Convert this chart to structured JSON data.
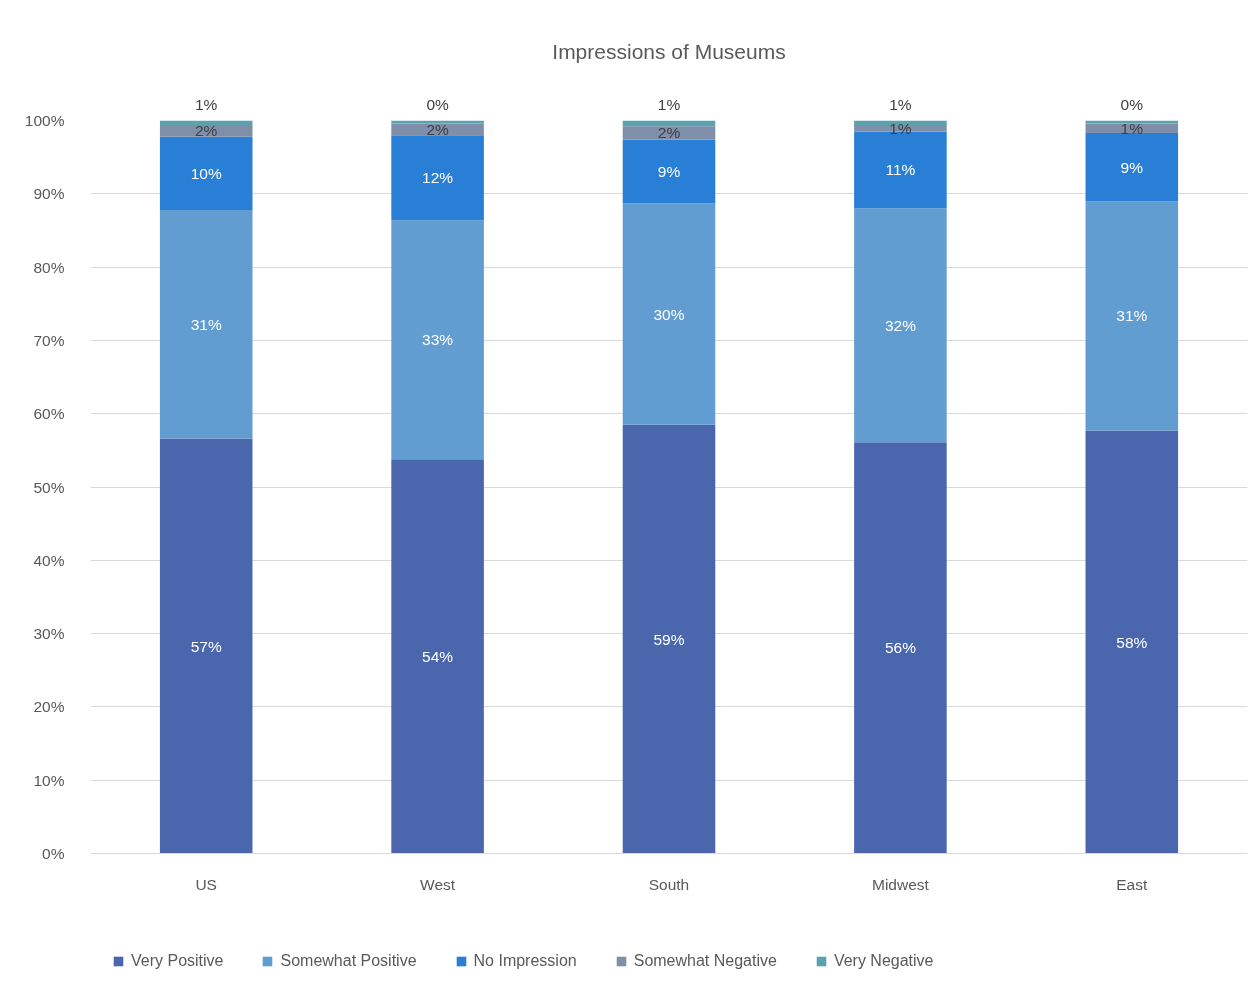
{
  "chart_data": {
    "type": "bar",
    "title": "Impressions of Museums",
    "categories": [
      "US",
      "West",
      "South",
      "Midwest",
      "East"
    ],
    "stacked": true,
    "ylim": [
      0,
      100
    ],
    "yticks": [
      {
        "value": 0,
        "label": "0%"
      },
      {
        "value": 10,
        "label": "10%"
      },
      {
        "value": 20,
        "label": "20%"
      },
      {
        "value": 30,
        "label": "30%"
      },
      {
        "value": 40,
        "label": "40%"
      },
      {
        "value": 50,
        "label": "50%"
      },
      {
        "value": 60,
        "label": "60%"
      },
      {
        "value": 70,
        "label": "70%"
      },
      {
        "value": 80,
        "label": "80%"
      },
      {
        "value": 90,
        "label": "90%"
      },
      {
        "value": 100,
        "label": "100%"
      }
    ],
    "grid": "y",
    "legend": "bottom",
    "series": [
      {
        "name": "Very Positive",
        "color": "#4a66ac",
        "values": [
          56.6,
          53.8,
          58.5,
          56.1,
          57.7
        ],
        "value_labels": [
          "57%",
          "54%",
          "59%",
          "56%",
          "58%"
        ]
      },
      {
        "name": "Somewhat Positive",
        "color": "#629dd1",
        "values": [
          31.2,
          32.6,
          30.2,
          31.9,
          31.3
        ],
        "value_labels": [
          "31%",
          "33%",
          "30%",
          "32%",
          "31%"
        ]
      },
      {
        "name": "No Impression",
        "color": "#297fd5",
        "values": [
          10.0,
          11.6,
          8.7,
          10.5,
          9.3
        ],
        "value_labels": [
          "10%",
          "12%",
          "9%",
          "11%",
          "9%"
        ]
      },
      {
        "name": "Somewhat Negative",
        "color": "#7f8fa9",
        "values": [
          1.6,
          1.6,
          1.8,
          0.9,
          1.3
        ],
        "value_labels": [
          "2%",
          "2%",
          "2%",
          "1%",
          "1%"
        ]
      },
      {
        "name": "Very Negative",
        "color": "#5aa2ae",
        "values": [
          0.6,
          0.4,
          0.8,
          0.6,
          0.4
        ],
        "value_labels": [
          "1%",
          "0%",
          "1%",
          "1%",
          "0%"
        ]
      }
    ]
  }
}
